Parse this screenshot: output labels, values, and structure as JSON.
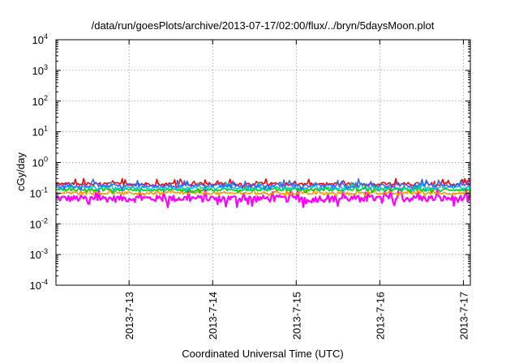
{
  "chart_data": {
    "type": "line",
    "title": "/data/run/goesPlots/archive/2013-07-17/02:00/flux/../bryn/5daysMoon.plot",
    "xlabel": "Coordinated Universal Time (UTC)",
    "ylabel": "cGy/day",
    "x_range": [
      "2013-07-12T03:00",
      "2013-07-17T02:00"
    ],
    "x_ticks": [
      "2013-7-13",
      "2013-7-14",
      "2013-7-15",
      "2013-7-16",
      "2013-7-17"
    ],
    "y_scale": "log",
    "ylim": [
      0.0001,
      10000
    ],
    "y_ticks": [
      {
        "value": 0.0001,
        "base": "10",
        "exp": "-4"
      },
      {
        "value": 0.001,
        "base": "10",
        "exp": "-3"
      },
      {
        "value": 0.01,
        "base": "10",
        "exp": "-2"
      },
      {
        "value": 0.1,
        "base": "10",
        "exp": "-1"
      },
      {
        "value": 1,
        "base": "10",
        "exp": "0"
      },
      {
        "value": 10,
        "base": "10",
        "exp": "1"
      },
      {
        "value": 100,
        "base": "10",
        "exp": "2"
      },
      {
        "value": 1000,
        "base": "10",
        "exp": "3"
      },
      {
        "value": 10000,
        "base": "10",
        "exp": "4"
      }
    ],
    "grid": true,
    "series": [
      {
        "color": "#ff00ff",
        "baseline": 0.068,
        "spread": 0.25
      },
      {
        "color": "#ff0000",
        "baseline": 0.2,
        "spread": 0.12
      },
      {
        "color": "#ff9900",
        "baseline": 0.1,
        "spread": 0.1
      },
      {
        "color": "#00cc00",
        "baseline": 0.13,
        "spread": 0.1
      },
      {
        "color": "#00cccc",
        "baseline": 0.15,
        "spread": 0.12
      },
      {
        "color": "#3366ff",
        "baseline": 0.18,
        "spread": 0.14
      }
    ]
  }
}
